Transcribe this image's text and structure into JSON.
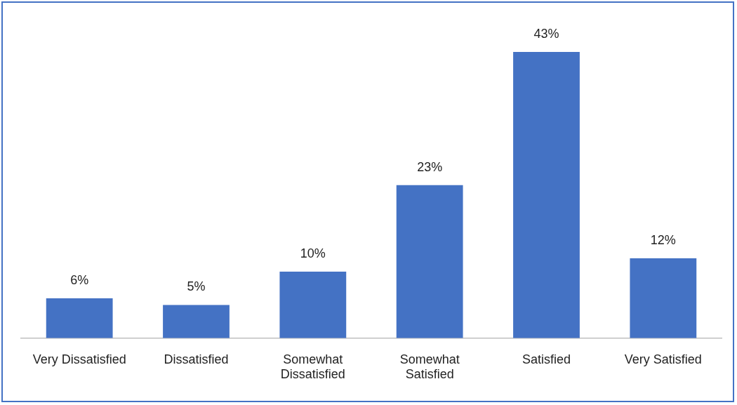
{
  "chart_data": {
    "type": "bar",
    "categories": [
      "Very Dissatisfied",
      "Dissatisfied",
      "Somewhat Dissatisfied",
      "Somewhat Satisfied",
      "Satisfied",
      "Very Satisfied"
    ],
    "values": [
      6,
      5,
      10,
      23,
      43,
      12
    ],
    "value_labels": [
      "6%",
      "5%",
      "10%",
      "23%",
      "43%",
      "12%"
    ],
    "color": "#4472c4",
    "grid": false,
    "legend": false
  }
}
